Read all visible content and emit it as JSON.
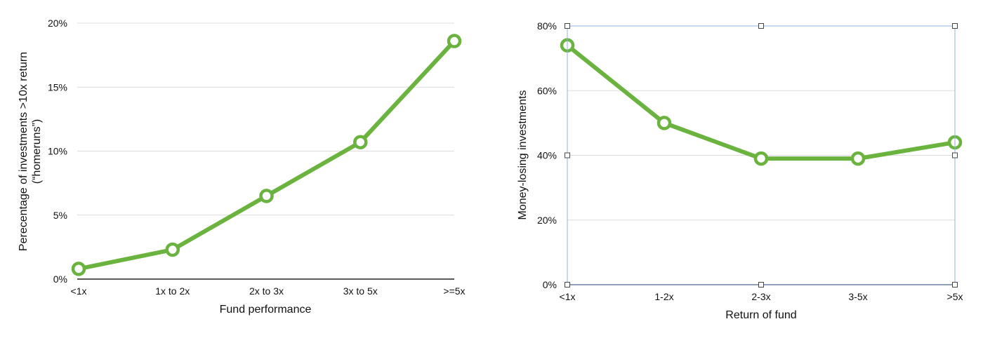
{
  "colors": {
    "series": "#6ab33e",
    "grid": "#dcdcdc",
    "axis": "#222222",
    "selection": "#8fb0e8",
    "background": "#ffffff"
  },
  "chart_data": [
    {
      "type": "line",
      "title": "",
      "categories": [
        "<1x",
        "1x to 2x",
        "2x to 3x",
        "3x to 5x",
        ">=5x"
      ],
      "series": [
        {
          "values": [
            0.8,
            2.3,
            6.5,
            10.7,
            18.6
          ]
        }
      ],
      "xlabel": "Fund performance",
      "ylabel": "Perecentage of investments >10x return",
      "ylabel2": "(“homeruns”)",
      "ylim": [
        0,
        20
      ],
      "yticks": [
        "0%",
        "5%",
        "10%",
        "15%",
        "20%"
      ],
      "grid": true,
      "legend": "none",
      "markers": "hollow-circle"
    },
    {
      "type": "line",
      "title": "",
      "categories": [
        "<1x",
        "1-2x",
        "2-3x",
        "3-5x",
        ">5x"
      ],
      "series": [
        {
          "values": [
            74,
            50,
            39,
            39,
            44
          ]
        }
      ],
      "xlabel": "Return of fund",
      "ylabel": "Money-losing investments",
      "ylim": [
        0,
        80
      ],
      "yticks": [
        "0%",
        "20%",
        "40%",
        "60%",
        "80%"
      ],
      "grid": true,
      "legend": "none",
      "markers": "hollow-circle",
      "selected": true
    }
  ]
}
